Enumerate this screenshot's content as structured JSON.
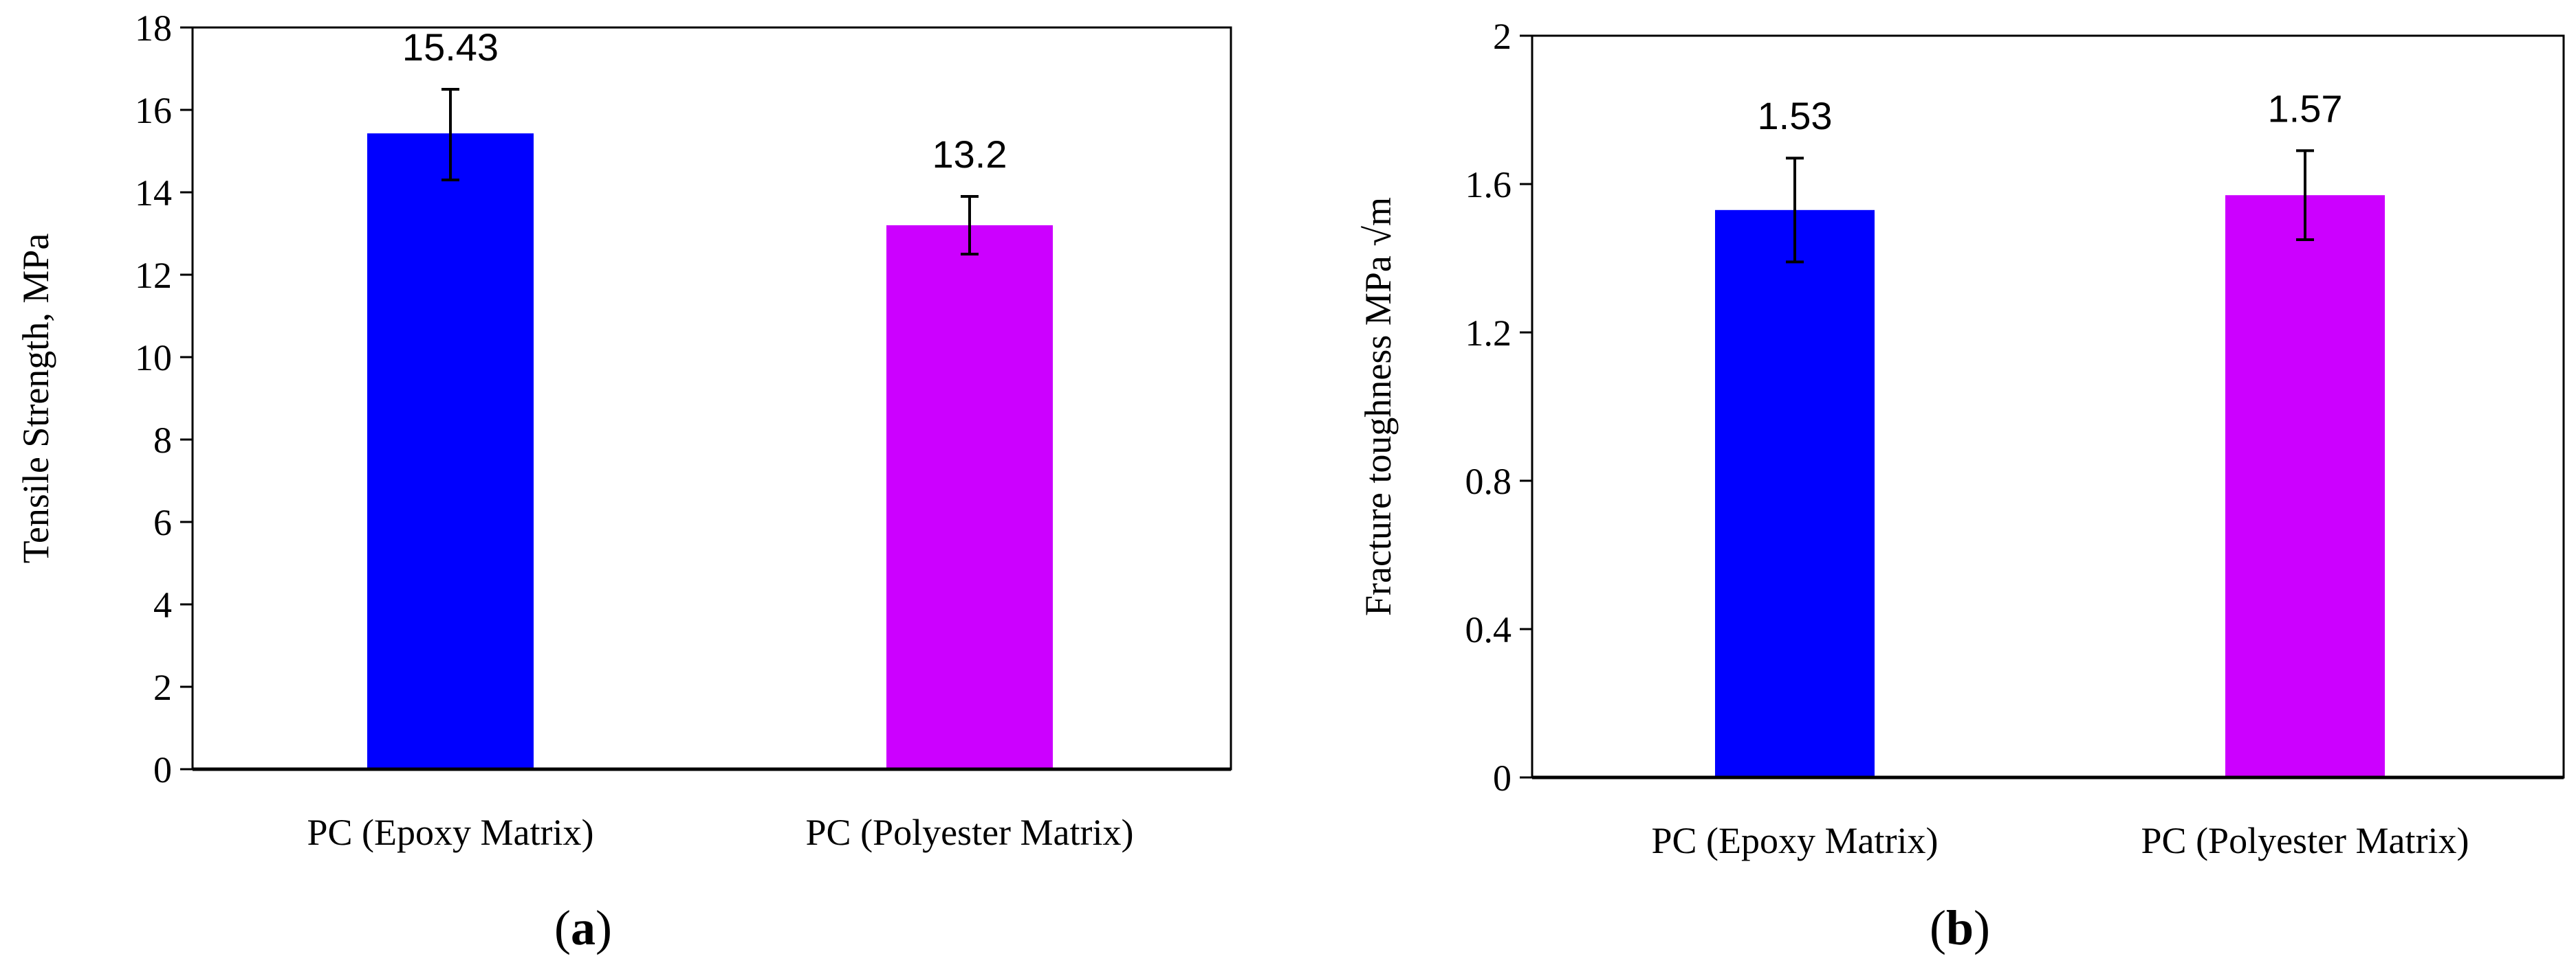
{
  "chart_data": [
    {
      "type": "bar",
      "panel_label": "a",
      "categories": [
        "PC (Epoxy Matrix)",
        "PC (Polyester Matrix)"
      ],
      "values": [
        15.43,
        13.2
      ],
      "value_labels": [
        "15.43",
        "13.2"
      ],
      "error_low": [
        14.3,
        12.5
      ],
      "error_high": [
        16.5,
        13.9
      ],
      "bar_colors": [
        "#0000ff",
        "#cc00ff"
      ],
      "ylabel": "Tensile Strength, MPa",
      "xlabel": "",
      "ylim": [
        0,
        18
      ],
      "yticks": [
        0,
        2,
        4,
        6,
        8,
        10,
        12,
        14,
        16,
        18
      ],
      "ytick_labels": [
        "0",
        "2",
        "4",
        "6",
        "8",
        "10",
        "12",
        "14",
        "16",
        "18"
      ],
      "grid": false,
      "legend": "none"
    },
    {
      "type": "bar",
      "panel_label": "b",
      "categories": [
        "PC (Epoxy Matrix)",
        "PC (Polyester Matrix)"
      ],
      "values": [
        1.53,
        1.57
      ],
      "value_labels": [
        "1.53",
        "1.57"
      ],
      "error_low": [
        1.39,
        1.45
      ],
      "error_high": [
        1.67,
        1.69
      ],
      "bar_colors": [
        "#0000ff",
        "#cc00ff"
      ],
      "ylabel": "Fracture toughness MPa √m",
      "xlabel": "",
      "ylim": [
        0,
        2
      ],
      "yticks": [
        0,
        0.4,
        0.8,
        1.2,
        1.6,
        2
      ],
      "ytick_labels": [
        "0",
        "0.4",
        "0.8",
        "1.2",
        "1.6",
        "2"
      ],
      "grid": false,
      "legend": "none"
    }
  ]
}
